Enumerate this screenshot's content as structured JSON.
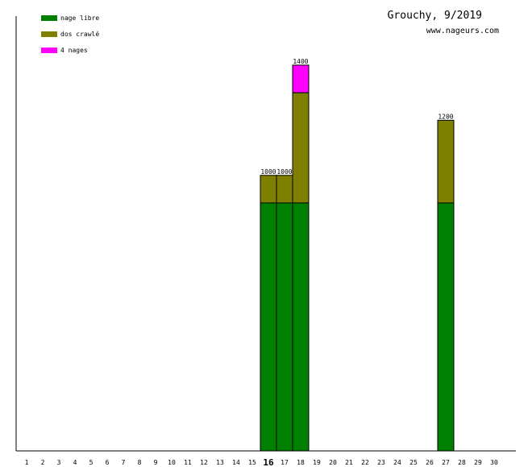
{
  "chart_data": {
    "type": "bar",
    "stacked": true,
    "title": "Grouchy, 9/2019",
    "source": "www.nageurs.com",
    "xlabel": "",
    "ylabel": "",
    "ylim": [
      0,
      1400
    ],
    "grid": false,
    "legend_position": "top-left",
    "highlight_category": "16",
    "categories": [
      "1",
      "2",
      "3",
      "4",
      "5",
      "6",
      "7",
      "8",
      "9",
      "10",
      "11",
      "12",
      "13",
      "14",
      "15",
      "16",
      "17",
      "18",
      "19",
      "20",
      "21",
      "22",
      "23",
      "24",
      "25",
      "26",
      "27",
      "28",
      "29",
      "30"
    ],
    "series": [
      {
        "name": "nage libre",
        "color": "#008000",
        "values": [
          0,
          0,
          0,
          0,
          0,
          0,
          0,
          0,
          0,
          0,
          0,
          0,
          0,
          0,
          0,
          900,
          900,
          900,
          0,
          0,
          0,
          0,
          0,
          0,
          0,
          0,
          900,
          0,
          0,
          0
        ]
      },
      {
        "name": "dos crawlé",
        "color": "#808000",
        "values": [
          0,
          0,
          0,
          0,
          0,
          0,
          0,
          0,
          0,
          0,
          0,
          0,
          0,
          0,
          0,
          100,
          100,
          400,
          0,
          0,
          0,
          0,
          0,
          0,
          0,
          0,
          300,
          0,
          0,
          0
        ]
      },
      {
        "name": "4 nages",
        "color": "#ff00ff",
        "values": [
          0,
          0,
          0,
          0,
          0,
          0,
          0,
          0,
          0,
          0,
          0,
          0,
          0,
          0,
          0,
          0,
          0,
          100,
          0,
          0,
          0,
          0,
          0,
          0,
          0,
          0,
          0,
          0,
          0,
          0
        ]
      }
    ],
    "totals": [
      0,
      0,
      0,
      0,
      0,
      0,
      0,
      0,
      0,
      0,
      0,
      0,
      0,
      0,
      0,
      1000,
      1000,
      1400,
      0,
      0,
      0,
      0,
      0,
      0,
      0,
      0,
      1200,
      0,
      0,
      0
    ]
  }
}
